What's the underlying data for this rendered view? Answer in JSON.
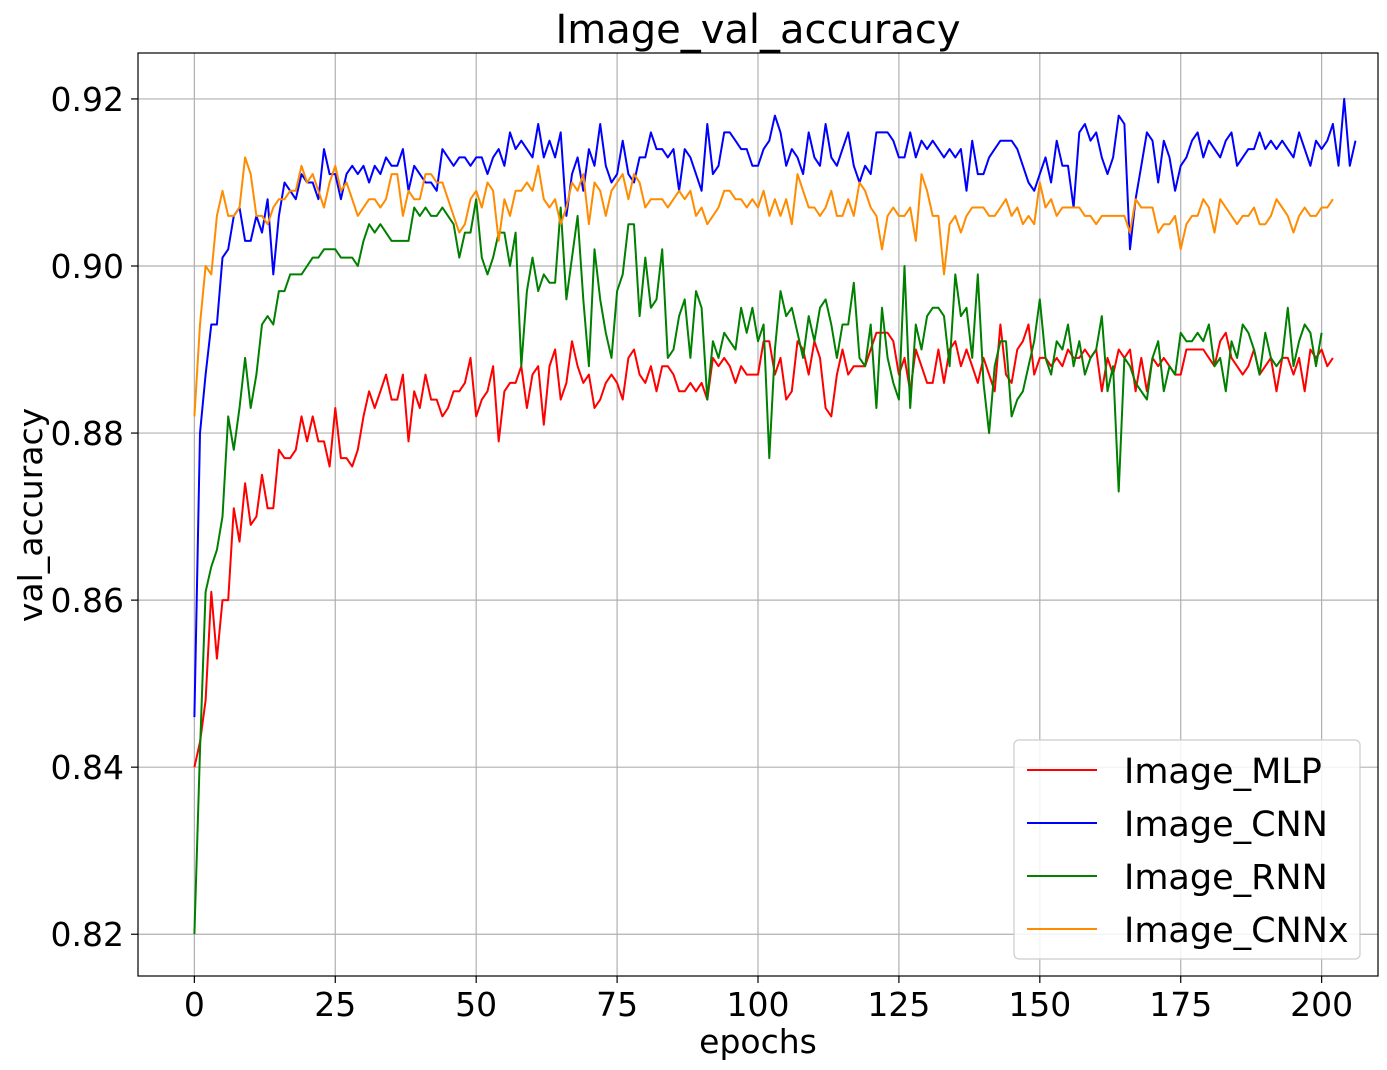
{
  "chart_data": {
    "type": "line",
    "title": "Image_val_accuracy",
    "xlabel": "epochs",
    "ylabel": "val_accuracy",
    "xlim": [
      -10,
      210
    ],
    "ylim": [
      0.815,
      0.9255
    ],
    "xticks": [
      0,
      25,
      50,
      75,
      100,
      125,
      150,
      175,
      200
    ],
    "yticks": [
      0.82,
      0.84,
      0.86,
      0.88,
      0.9,
      0.92
    ],
    "xtick_labels": [
      "0",
      "25",
      "50",
      "75",
      "100",
      "125",
      "150",
      "175",
      "200"
    ],
    "ytick_labels": [
      "0.82",
      "0.84",
      "0.86",
      "0.88",
      "0.90",
      "0.92"
    ],
    "grid": true,
    "legend_position": "lower-right",
    "x": {
      "start": 0,
      "end": 199,
      "step": 1
    },
    "series": [
      {
        "name": "Image_MLP",
        "color": "#ff0000",
        "values": [
          0.84,
          0.843,
          0.848,
          0.861,
          0.853,
          0.86,
          0.86,
          0.871,
          0.867,
          0.874,
          0.869,
          0.87,
          0.875,
          0.871,
          0.871,
          0.878,
          0.877,
          0.877,
          0.878,
          0.882,
          0.879,
          0.882,
          0.879,
          0.879,
          0.876,
          0.883,
          0.877,
          0.877,
          0.876,
          0.878,
          0.882,
          0.885,
          0.883,
          0.885,
          0.887,
          0.884,
          0.884,
          0.887,
          0.879,
          0.885,
          0.883,
          0.887,
          0.884,
          0.884,
          0.882,
          0.883,
          0.885,
          0.885,
          0.886,
          0.889,
          0.882,
          0.884,
          0.885,
          0.888,
          0.879,
          0.885,
          0.886,
          0.886,
          0.888,
          0.883,
          0.887,
          0.888,
          0.881,
          0.888,
          0.89,
          0.884,
          0.886,
          0.891,
          0.888,
          0.886,
          0.887,
          0.883,
          0.884,
          0.886,
          0.887,
          0.886,
          0.884,
          0.889,
          0.89,
          0.887,
          0.886,
          0.888,
          0.885,
          0.888,
          0.888,
          0.887,
          0.885,
          0.885,
          0.886,
          0.885,
          0.886,
          0.884,
          0.889,
          0.888,
          0.889,
          0.888,
          0.886,
          0.888,
          0.887,
          0.887,
          0.887,
          0.891,
          0.891,
          0.887,
          0.889,
          0.884,
          0.885,
          0.891,
          0.89,
          0.887,
          0.891,
          0.889,
          0.883,
          0.882,
          0.887,
          0.89,
          0.887,
          0.888,
          0.888,
          0.888,
          0.89,
          0.892,
          0.892,
          0.892,
          0.891,
          0.887,
          0.889,
          0.885,
          0.89,
          0.888,
          0.886,
          0.886,
          0.89,
          0.886,
          0.89,
          0.891,
          0.888,
          0.89,
          0.888,
          0.886,
          0.889,
          0.887,
          0.885,
          0.893,
          0.887,
          0.886,
          0.89,
          0.891,
          0.893,
          0.887,
          0.889,
          0.889,
          0.888,
          0.889,
          0.888,
          0.89,
          0.889,
          0.889,
          0.89,
          0.889,
          0.89,
          0.885,
          0.889,
          0.887,
          0.89,
          0.889,
          0.89,
          0.885,
          0.889,
          0.885,
          0.889,
          0.888,
          0.889,
          0.888,
          0.887,
          0.887,
          0.89,
          0.89,
          0.89,
          0.89,
          0.889,
          0.888,
          0.891,
          0.892,
          0.889,
          0.888,
          0.887,
          0.888,
          0.89,
          0.887,
          0.888,
          0.889,
          0.885,
          0.889,
          0.889,
          0.887,
          0.889,
          0.885,
          0.89,
          0.889,
          0.89,
          0.888,
          0.889
        ]
      },
      {
        "name": "Image_CNN",
        "color": "#0000ff",
        "values": [
          0.846,
          0.88,
          0.887,
          0.893,
          0.893,
          0.901,
          0.902,
          0.906,
          0.907,
          0.903,
          0.903,
          0.906,
          0.904,
          0.908,
          0.899,
          0.906,
          0.91,
          0.909,
          0.908,
          0.911,
          0.91,
          0.91,
          0.908,
          0.914,
          0.911,
          0.911,
          0.908,
          0.911,
          0.912,
          0.911,
          0.912,
          0.91,
          0.912,
          0.911,
          0.913,
          0.912,
          0.912,
          0.914,
          0.909,
          0.912,
          0.911,
          0.91,
          0.91,
          0.909,
          0.914,
          0.913,
          0.912,
          0.913,
          0.913,
          0.912,
          0.913,
          0.913,
          0.911,
          0.913,
          0.914,
          0.912,
          0.916,
          0.914,
          0.915,
          0.914,
          0.913,
          0.917,
          0.913,
          0.915,
          0.913,
          0.916,
          0.906,
          0.911,
          0.913,
          0.909,
          0.914,
          0.912,
          0.917,
          0.912,
          0.91,
          0.911,
          0.915,
          0.911,
          0.91,
          0.913,
          0.913,
          0.916,
          0.914,
          0.914,
          0.913,
          0.914,
          0.909,
          0.914,
          0.913,
          0.911,
          0.909,
          0.917,
          0.911,
          0.912,
          0.916,
          0.916,
          0.915,
          0.914,
          0.914,
          0.912,
          0.912,
          0.914,
          0.915,
          0.918,
          0.916,
          0.912,
          0.914,
          0.913,
          0.911,
          0.916,
          0.913,
          0.912,
          0.917,
          0.913,
          0.912,
          0.914,
          0.916,
          0.912,
          0.91,
          0.912,
          0.911,
          0.916,
          0.916,
          0.916,
          0.915,
          0.913,
          0.913,
          0.916,
          0.913,
          0.915,
          0.914,
          0.915,
          0.914,
          0.913,
          0.914,
          0.913,
          0.914,
          0.909,
          0.915,
          0.911,
          0.911,
          0.913,
          0.914,
          0.915,
          0.915,
          0.915,
          0.914,
          0.912,
          0.91,
          0.909,
          0.911,
          0.913,
          0.91,
          0.915,
          0.912,
          0.912,
          0.907,
          0.916,
          0.917,
          0.915,
          0.916,
          0.913,
          0.911,
          0.913,
          0.918,
          0.917,
          0.902,
          0.908,
          0.912,
          0.916,
          0.915,
          0.91,
          0.915,
          0.913,
          0.909,
          0.912,
          0.913,
          0.915,
          0.916,
          0.913,
          0.915,
          0.914,
          0.913,
          0.915,
          0.916,
          0.912,
          0.913,
          0.914,
          0.914,
          0.916,
          0.914,
          0.915,
          0.914,
          0.915,
          0.914,
          0.913,
          0.916,
          0.914,
          0.912,
          0.915,
          0.914,
          0.915,
          0.917,
          0.912,
          0.92,
          0.912,
          0.915
        ]
      },
      {
        "name": "Image_RNN",
        "color": "#008000",
        "values": [
          0.82,
          0.842,
          0.861,
          0.864,
          0.866,
          0.87,
          0.882,
          0.878,
          0.883,
          0.889,
          0.883,
          0.887,
          0.893,
          0.894,
          0.893,
          0.897,
          0.897,
          0.899,
          0.899,
          0.899,
          0.9,
          0.901,
          0.901,
          0.902,
          0.902,
          0.902,
          0.901,
          0.901,
          0.901,
          0.9,
          0.903,
          0.905,
          0.904,
          0.905,
          0.904,
          0.903,
          0.903,
          0.903,
          0.903,
          0.907,
          0.906,
          0.907,
          0.906,
          0.906,
          0.907,
          0.906,
          0.905,
          0.901,
          0.904,
          0.904,
          0.908,
          0.901,
          0.899,
          0.901,
          0.904,
          0.904,
          0.9,
          0.904,
          0.888,
          0.897,
          0.901,
          0.897,
          0.899,
          0.898,
          0.898,
          0.907,
          0.896,
          0.901,
          0.906,
          0.896,
          0.888,
          0.902,
          0.896,
          0.892,
          0.889,
          0.897,
          0.899,
          0.905,
          0.905,
          0.894,
          0.901,
          0.895,
          0.896,
          0.902,
          0.889,
          0.89,
          0.894,
          0.896,
          0.889,
          0.897,
          0.895,
          0.884,
          0.891,
          0.889,
          0.892,
          0.891,
          0.89,
          0.895,
          0.892,
          0.895,
          0.891,
          0.893,
          0.877,
          0.89,
          0.897,
          0.894,
          0.895,
          0.892,
          0.889,
          0.894,
          0.891,
          0.895,
          0.896,
          0.893,
          0.889,
          0.893,
          0.893,
          0.898,
          0.889,
          0.888,
          0.893,
          0.883,
          0.895,
          0.889,
          0.886,
          0.884,
          0.9,
          0.883,
          0.893,
          0.89,
          0.894,
          0.895,
          0.895,
          0.894,
          0.888,
          0.899,
          0.894,
          0.895,
          0.889,
          0.899,
          0.886,
          0.88,
          0.888,
          0.891,
          0.891,
          0.882,
          0.884,
          0.885,
          0.888,
          0.891,
          0.896,
          0.889,
          0.887,
          0.891,
          0.89,
          0.893,
          0.888,
          0.891,
          0.887,
          0.889,
          0.89,
          0.894,
          0.885,
          0.888,
          0.873,
          0.889,
          0.888,
          0.886,
          0.885,
          0.884,
          0.889,
          0.891,
          0.885,
          0.888,
          0.887,
          0.892,
          0.891,
          0.891,
          0.892,
          0.891,
          0.893,
          0.888,
          0.889,
          0.885,
          0.891,
          0.889,
          0.893,
          0.892,
          0.89,
          0.887,
          0.892,
          0.889,
          0.888,
          0.889,
          0.895,
          0.888,
          0.891,
          0.893,
          0.892,
          0.888,
          0.892
        ]
      },
      {
        "name": "Image_CNNx",
        "color": "#ff8c00",
        "values": [
          0.882,
          0.893,
          0.9,
          0.899,
          0.906,
          0.909,
          0.906,
          0.906,
          0.907,
          0.913,
          0.911,
          0.906,
          0.906,
          0.905,
          0.907,
          0.908,
          0.908,
          0.909,
          0.909,
          0.912,
          0.91,
          0.911,
          0.909,
          0.907,
          0.91,
          0.912,
          0.909,
          0.91,
          0.908,
          0.906,
          0.907,
          0.908,
          0.908,
          0.907,
          0.908,
          0.911,
          0.911,
          0.906,
          0.909,
          0.908,
          0.908,
          0.911,
          0.911,
          0.91,
          0.91,
          0.908,
          0.906,
          0.904,
          0.905,
          0.908,
          0.909,
          0.907,
          0.91,
          0.909,
          0.903,
          0.908,
          0.906,
          0.909,
          0.909,
          0.91,
          0.909,
          0.912,
          0.908,
          0.907,
          0.908,
          0.905,
          0.907,
          0.91,
          0.909,
          0.911,
          0.905,
          0.91,
          0.909,
          0.906,
          0.909,
          0.91,
          0.911,
          0.908,
          0.911,
          0.91,
          0.907,
          0.908,
          0.908,
          0.908,
          0.907,
          0.908,
          0.909,
          0.908,
          0.909,
          0.906,
          0.907,
          0.905,
          0.906,
          0.907,
          0.909,
          0.909,
          0.908,
          0.908,
          0.907,
          0.908,
          0.907,
          0.909,
          0.906,
          0.908,
          0.906,
          0.908,
          0.905,
          0.911,
          0.909,
          0.907,
          0.907,
          0.906,
          0.907,
          0.909,
          0.906,
          0.906,
          0.908,
          0.906,
          0.91,
          0.909,
          0.907,
          0.906,
          0.902,
          0.906,
          0.907,
          0.906,
          0.906,
          0.907,
          0.903,
          0.911,
          0.909,
          0.906,
          0.906,
          0.899,
          0.905,
          0.906,
          0.904,
          0.906,
          0.907,
          0.907,
          0.907,
          0.906,
          0.906,
          0.907,
          0.908,
          0.906,
          0.907,
          0.905,
          0.906,
          0.905,
          0.91,
          0.907,
          0.908,
          0.906,
          0.907,
          0.907,
          0.907,
          0.907,
          0.906,
          0.906,
          0.905,
          0.906,
          0.906,
          0.906,
          0.906,
          0.906,
          0.904,
          0.908,
          0.907,
          0.907,
          0.907,
          0.904,
          0.905,
          0.905,
          0.906,
          0.902,
          0.905,
          0.906,
          0.906,
          0.908,
          0.907,
          0.904,
          0.908,
          0.907,
          0.906,
          0.905,
          0.906,
          0.906,
          0.907,
          0.905,
          0.905,
          0.906,
          0.908,
          0.907,
          0.906,
          0.904,
          0.906,
          0.907,
          0.906,
          0.906,
          0.907,
          0.907,
          0.908
        ]
      }
    ]
  }
}
